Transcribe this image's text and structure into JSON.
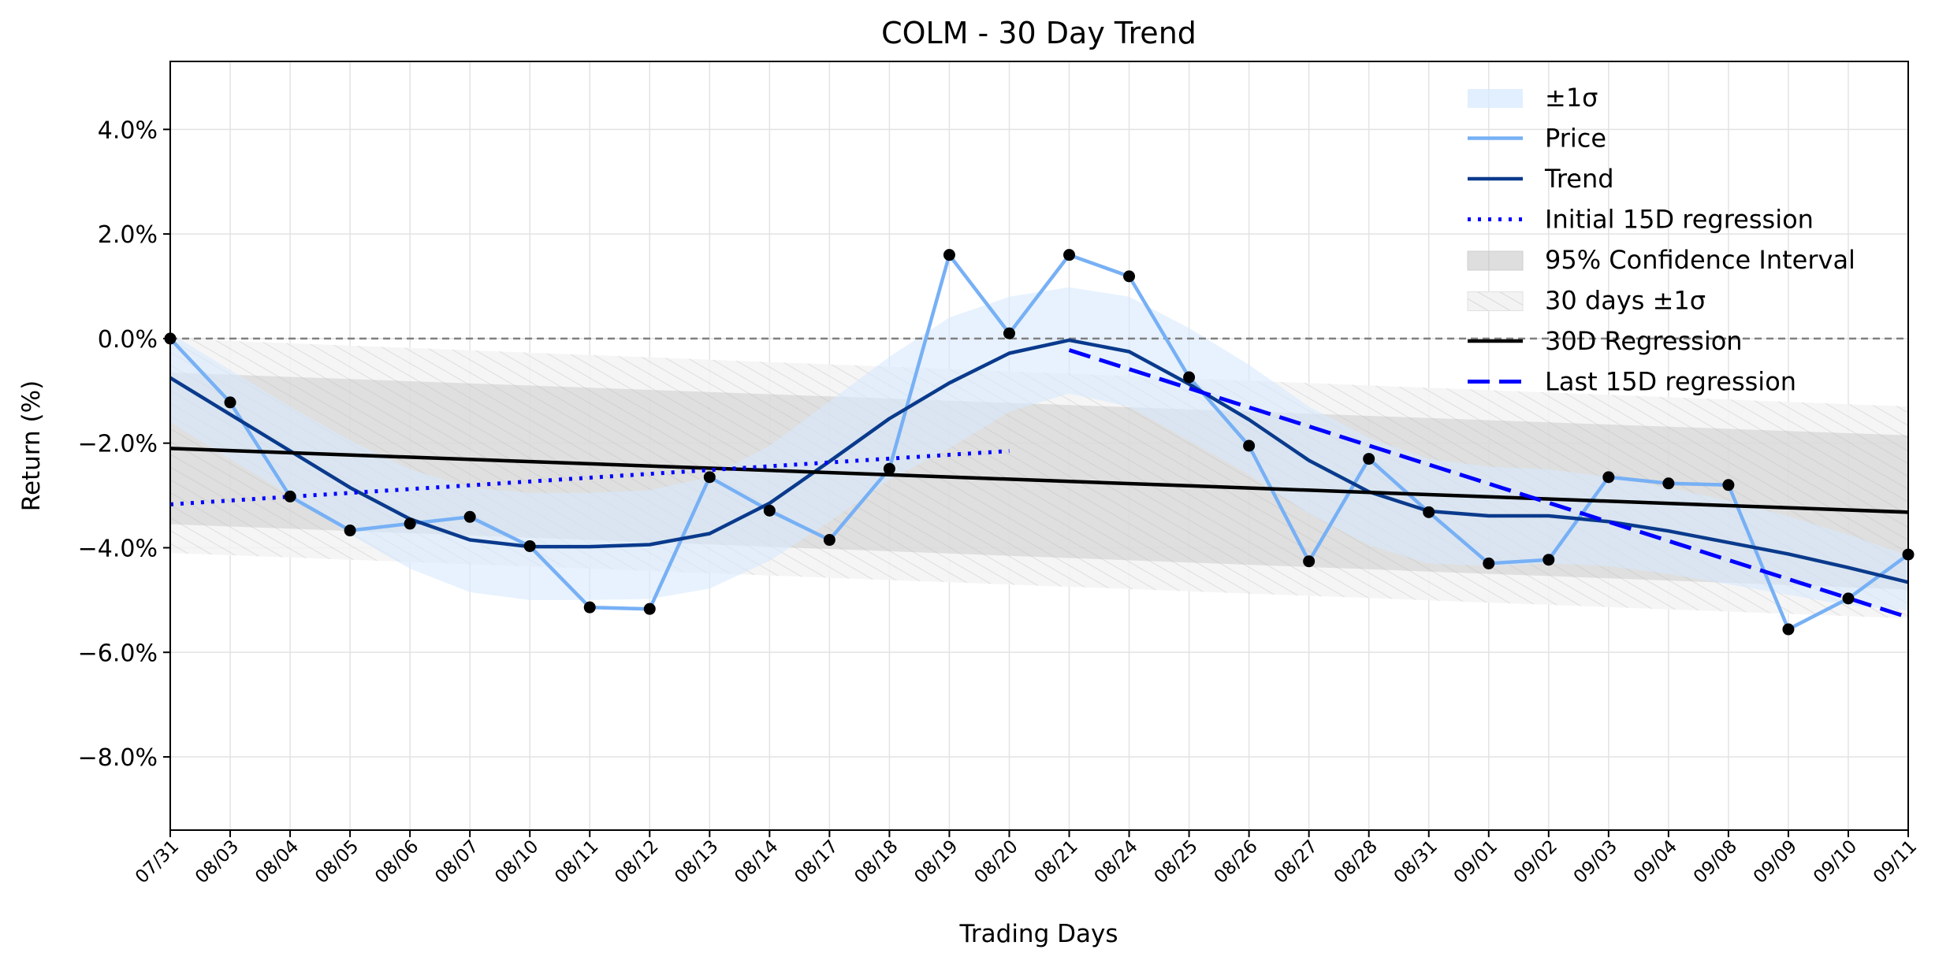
{
  "chart_data": {
    "type": "line",
    "title": "COLM - 30 Day Trend",
    "xlabel": "Trading Days",
    "ylabel": "Return (%)",
    "ylim": [
      -9.4,
      5.3
    ],
    "yticks": [
      -8,
      -6,
      -4,
      -2,
      0,
      2,
      4
    ],
    "ytick_labels": [
      "−8.0%",
      "−6.0%",
      "−4.0%",
      "−2.0%",
      "0.0%",
      "2.0%",
      "4.0%"
    ],
    "grid": true,
    "legend_position": "top-right",
    "categories": [
      "07/31",
      "08/03",
      "08/04",
      "08/05",
      "08/06",
      "08/07",
      "08/10",
      "08/11",
      "08/12",
      "08/13",
      "08/14",
      "08/17",
      "08/18",
      "08/19",
      "08/20",
      "08/21",
      "08/24",
      "08/25",
      "08/26",
      "08/27",
      "08/28",
      "08/31",
      "09/01",
      "09/02",
      "09/03",
      "09/04",
      "09/08",
      "09/09",
      "09/10",
      "09/11"
    ],
    "price": [
      0.0,
      -1.22,
      -3.02,
      -3.67,
      -3.54,
      -3.41,
      -3.97,
      -5.14,
      -5.17,
      -2.65,
      -3.29,
      -3.85,
      -2.49,
      1.6,
      0.1,
      1.6,
      1.19,
      -0.74,
      -2.05,
      -4.26,
      -2.3,
      -3.32,
      -4.3,
      -4.23,
      -2.65,
      -2.77,
      -2.8,
      -5.56,
      -4.97,
      -4.13
    ],
    "trend": [
      -0.75,
      -1.45,
      -2.15,
      -2.85,
      -3.45,
      -3.85,
      -3.98,
      -3.98,
      -3.94,
      -3.73,
      -3.15,
      -2.35,
      -1.53,
      -0.85,
      -0.28,
      -0.03,
      -0.25,
      -0.87,
      -1.55,
      -2.33,
      -2.93,
      -3.3,
      -3.39,
      -3.39,
      -3.5,
      -3.68,
      -3.9,
      -4.12,
      -4.38,
      -4.66
    ],
    "sigma_upper": [
      0.1,
      -0.6,
      -1.3,
      -1.95,
      -2.5,
      -2.85,
      -2.95,
      -2.95,
      -2.9,
      -2.65,
      -2.05,
      -1.2,
      -0.35,
      0.4,
      0.8,
      0.98,
      0.8,
      0.2,
      -0.5,
      -1.3,
      -1.9,
      -2.3,
      -2.45,
      -2.5,
      -2.65,
      -2.85,
      -3.1,
      -3.4,
      -3.75,
      -4.15
    ],
    "sigma_lower": [
      -1.6,
      -2.3,
      -3.0,
      -3.75,
      -4.4,
      -4.85,
      -5.0,
      -5.0,
      -4.98,
      -4.78,
      -4.25,
      -3.5,
      -2.7,
      -2.1,
      -1.4,
      -1.05,
      -1.3,
      -1.95,
      -2.6,
      -3.35,
      -3.95,
      -4.3,
      -4.35,
      -4.3,
      -4.35,
      -4.5,
      -4.7,
      -4.9,
      -5.1,
      -5.2
    ],
    "regression_30d": {
      "start": -2.1,
      "end": -3.32
    },
    "ci95": {
      "start_upper": -0.65,
      "end_upper": -1.85,
      "start_lower": -3.55,
      "end_lower": -4.8
    },
    "band_30d": {
      "start_upper": 0.0,
      "end_upper": -1.3,
      "start_lower": -4.1,
      "end_lower": -5.35
    },
    "initial_15d": {
      "start_index": 0,
      "end_index": 14,
      "start": -3.17,
      "end": -2.15
    },
    "last_15d": {
      "start_index": 15,
      "end_index": 29,
      "start": -0.22,
      "end": -5.33
    },
    "zero_line": 0.0,
    "colors": {
      "price": "#77b0f5",
      "trend": "#0a3a8c",
      "sigma": "#d7e9fd",
      "regression": "#000000",
      "initial_15d": "#0000ff",
      "last_15d": "#0000ff",
      "ci": "#bdbdbd",
      "band": "#e6e6e6",
      "marker": "#000000"
    },
    "legend": [
      {
        "key": "sigma",
        "label": "±1σ"
      },
      {
        "key": "price",
        "label": "Price"
      },
      {
        "key": "trend",
        "label": "Trend"
      },
      {
        "key": "initial_15d",
        "label": "Initial 15D regression"
      },
      {
        "key": "ci",
        "label": "95% Confidence Interval"
      },
      {
        "key": "band",
        "label": "30 days ±1σ"
      },
      {
        "key": "regression",
        "label": "30D Regression"
      },
      {
        "key": "last_15d",
        "label": "Last 15D regression"
      }
    ]
  }
}
